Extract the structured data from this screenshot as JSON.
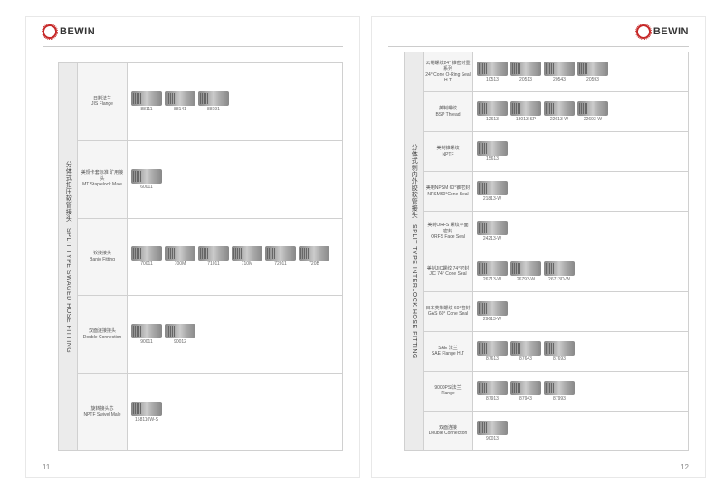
{
  "brand": "BEWIN",
  "leftPage": {
    "pageNum": "11",
    "sidebarCn": "分体式扣压软管接头",
    "sidebarEn": "SPLIT TYPE SWAGED HOSE FITTING",
    "rows": [
      {
        "catCn": "日制法兰",
        "catEn": "JIS Flange",
        "codes": [
          "88111",
          "88141",
          "88191"
        ]
      },
      {
        "catCn": "美规卡套标准\n矿用接头",
        "catEn": "MT Staplelock Male",
        "codes": [
          "60011"
        ]
      },
      {
        "catCn": "铰接接头",
        "catEn": "Banjo Fitting",
        "codes": [
          "70011",
          "700M",
          "71011",
          "710M",
          "72011",
          "720B"
        ]
      },
      {
        "catCn": "双面连接接头",
        "catEn": "Double Connection",
        "codes": [
          "90011",
          "90012"
        ]
      },
      {
        "catCn": "旋转接头芯",
        "catEn": "NPTF Swivel Male",
        "codes": [
          "158110W-S"
        ]
      }
    ]
  },
  "rightPage": {
    "pageNum": "12",
    "sidebarCn": "分体式剥内外胶软管接头",
    "sidebarEn": "SPLIT TYPE INTERLOCK HOSE FITTING",
    "rows": [
      {
        "catCn": "公制螺纹24°\n锥密封重系列",
        "catEn": "24° Cone\nO-Ring Seal H.T",
        "codes": [
          "10513",
          "20513",
          "20543",
          "20593"
        ]
      },
      {
        "catCn": "英制螺纹",
        "catEn": "BSP Thread",
        "codes": [
          "12613",
          "13013-SP",
          "22613-W",
          "22693-W"
        ]
      },
      {
        "catCn": "美制锥螺纹",
        "catEn": "NPTF",
        "codes": [
          "15613"
        ]
      },
      {
        "catCn": "美制NPSM\n60°锥密封",
        "catEn": "NPSM60°Cone Seal",
        "codes": [
          "21813-W"
        ]
      },
      {
        "catCn": "美制ORFS\n螺纹平面密封",
        "catEn": "ORFS Face Seal",
        "codes": [
          "24213-W"
        ]
      },
      {
        "catCn": "美制JIC螺纹\n74°密封",
        "catEn": "JIC 74° Cone Seal",
        "codes": [
          "26713-W",
          "26793-W",
          "26713D-W"
        ]
      },
      {
        "catCn": "日本英制螺纹\n60°密封",
        "catEn": "GAS 60° Cone Seal",
        "codes": [
          "29613-W"
        ]
      },
      {
        "catCn": "SAE 法兰",
        "catEn": "SAE Flange H.T",
        "codes": [
          "87613",
          "87643",
          "87693"
        ]
      },
      {
        "catCn": "9000PSI法兰",
        "catEn": "Flange",
        "codes": [
          "87913",
          "87943",
          "87993"
        ]
      },
      {
        "catCn": "双面连接",
        "catEn": "Double Connection",
        "codes": [
          "90013"
        ]
      }
    ]
  }
}
